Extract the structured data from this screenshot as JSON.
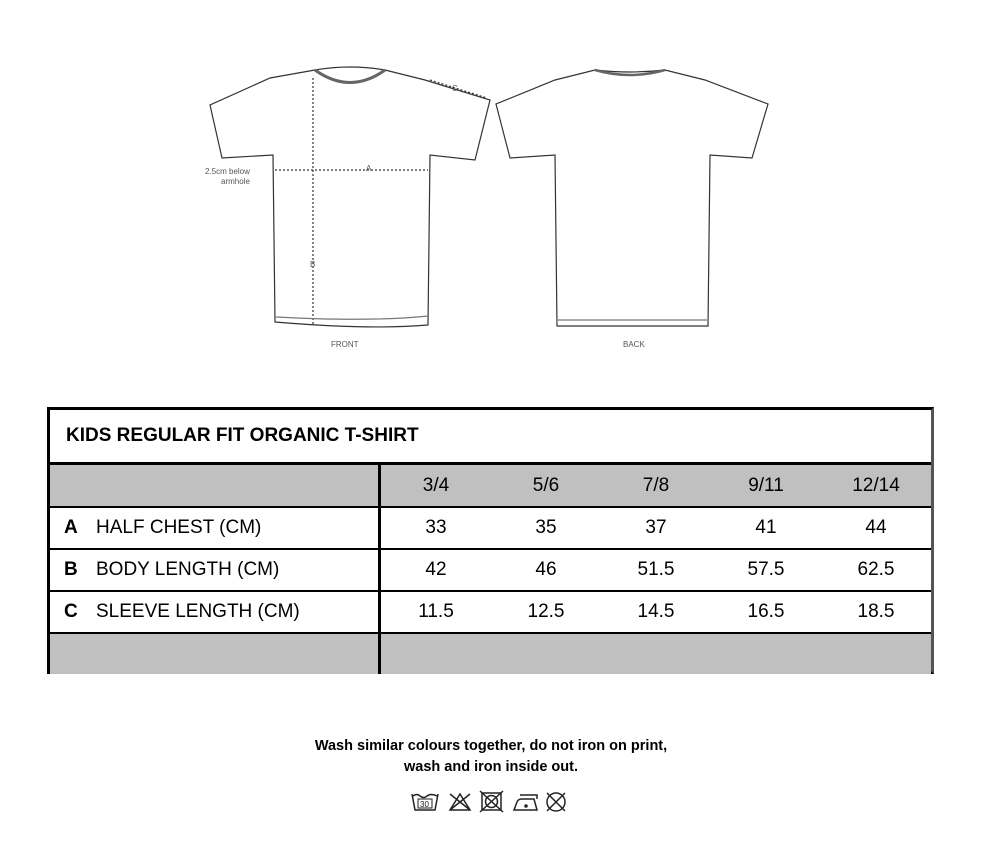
{
  "diagram": {
    "front_label": "FRONT",
    "back_label": "BACK",
    "armhole_note": "2.5cm below armhole",
    "marker_a": "A",
    "marker_b": "B",
    "marker_c": "C"
  },
  "table": {
    "title": "KIDS REGULAR FIT ORGANIC T-SHIRT",
    "sizes": [
      "3/4",
      "5/6",
      "7/8",
      "9/11",
      "12/14"
    ],
    "rows": [
      {
        "key": "A",
        "label": "HALF CHEST (CM)",
        "values": [
          "33",
          "35",
          "37",
          "41",
          "44"
        ]
      },
      {
        "key": "B",
        "label": "BODY LENGTH (CM)",
        "values": [
          "42",
          "46",
          "51.5",
          "57.5",
          "62.5"
        ]
      },
      {
        "key": "C",
        "label": "SLEEVE LENGTH (CM)",
        "values": [
          "11.5",
          "12.5",
          "14.5",
          "16.5",
          "18.5"
        ]
      }
    ]
  },
  "care": {
    "line1": "Wash similar colours together, do not iron on print,",
    "line2": "wash and iron inside out.",
    "wash_temp": "30",
    "icons": [
      "wash-30-icon",
      "no-bleach-icon",
      "no-tumble-dry-icon",
      "iron-low-icon",
      "no-dry-clean-icon"
    ]
  }
}
